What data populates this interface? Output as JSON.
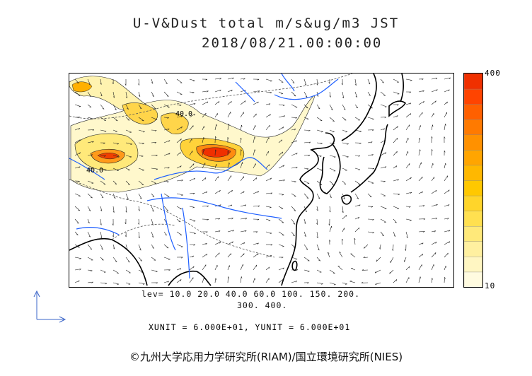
{
  "title": {
    "line1": "U-V&Dust total m/s&ug/m3 JST",
    "line2": "2018/08/21.00:00:00"
  },
  "levels": {
    "line1": "lev= 10.0 20.0 40.0 60.0 100. 150. 200.",
    "line2": "300. 400."
  },
  "units": "XUNIT = 6.000E+01, YUNIT = 6.000E+01",
  "credit": "©九州大学応用力学研究所(RIAM)/国立環境研究所(NIES)",
  "colorbar": {
    "max_label": "400",
    "min_label": "10",
    "colors": [
      "#fffbe0",
      "#fff6c2",
      "#fff0a0",
      "#ffe97a",
      "#ffe050",
      "#ffd52a",
      "#ffc800",
      "#ffb800",
      "#ffa500",
      "#ff9100",
      "#ff7a00",
      "#ff6000",
      "#ff4400",
      "#f03000"
    ]
  },
  "contour_labels": [
    "40.0",
    "40.0"
  ],
  "colors": {
    "coast": "#000000",
    "river": "#1e5fff",
    "border": "#555555",
    "vector": "#000000",
    "dust_low": "#fffbe0",
    "dust_high": "#f03000"
  }
}
